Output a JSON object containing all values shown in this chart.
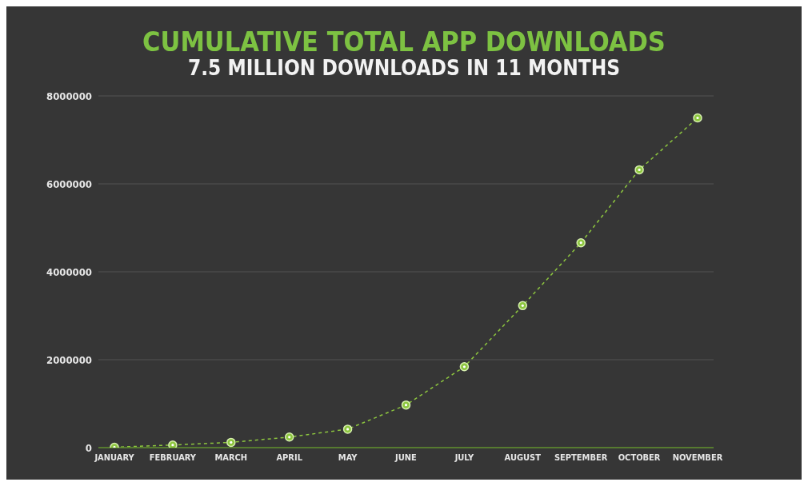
{
  "chart_data": {
    "type": "line",
    "title": "CUMULATIVE TOTAL APP DOWNLOADS",
    "subtitle": "7.5 MILLION DOWNLOADS IN 11 MONTHS",
    "categories": [
      "JANUARY",
      "FEBRUARY",
      "MARCH",
      "APRIL",
      "MAY",
      "JUNE",
      "JULY",
      "AUGUST",
      "SEPTEMBER",
      "OCTOBER",
      "NOVEMBER"
    ],
    "series": [
      {
        "color": "#8dc63f",
        "values": [
          10000,
          60000,
          120000,
          240000,
          420000,
          970000,
          1840000,
          3230000,
          4660000,
          6320000,
          7500000
        ]
      }
    ],
    "ylim": [
      0,
      8000000
    ],
    "yticks": [
      0,
      2000000,
      4000000,
      6000000,
      8000000
    ],
    "grid": "y",
    "legend": false,
    "marker": "circle",
    "line_style": "dashed"
  }
}
